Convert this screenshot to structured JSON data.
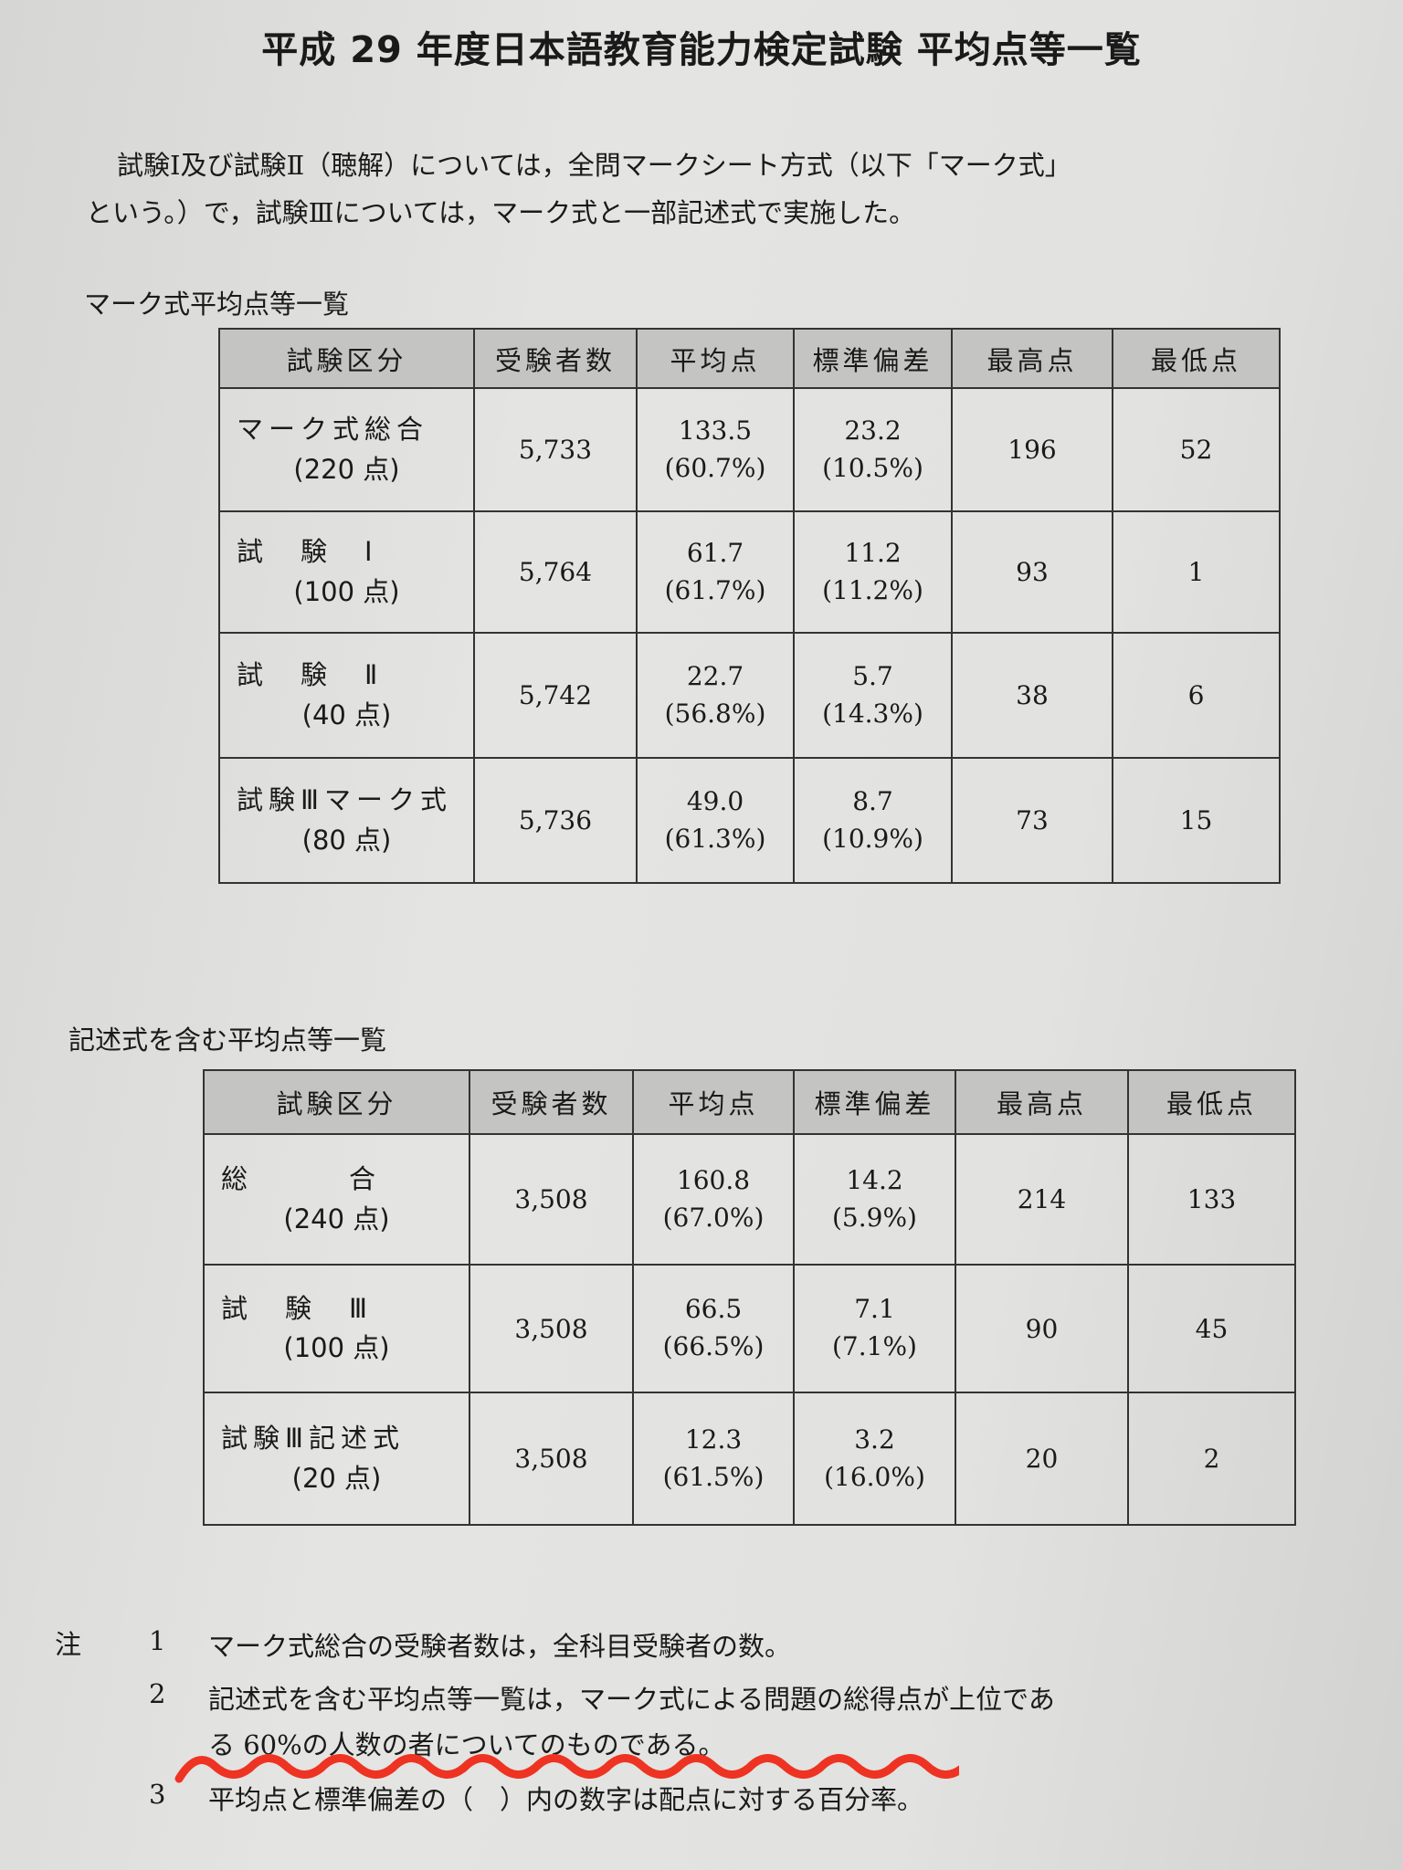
{
  "title": "平成 29 年度日本語教育能力検定試験 平均点等一覧",
  "intro": {
    "line1": "試験Ⅰ及び試験Ⅱ（聴解）については，全問マークシート方式（以下「マーク式」",
    "line2": "という。）で，試験Ⅲについては，マーク式と一部記述式で実施した。"
  },
  "headers": [
    "試験区分",
    "受験者数",
    "平均点",
    "標準偏差",
    "最高点",
    "最低点"
  ],
  "table1": {
    "heading": "マーク式平均点等一覧",
    "rows": [
      {
        "name": "マーク式総合",
        "points": "(220 点)",
        "examinees": "5,733",
        "mean": "133.5",
        "mean_pct": "(60.7%)",
        "sd": "23.2",
        "sd_pct": "(10.5%)",
        "max": "196",
        "min": "52"
      },
      {
        "name": "試　験　Ⅰ",
        "points": "(100 点)",
        "examinees": "5,764",
        "mean": "61.7",
        "mean_pct": "(61.7%)",
        "sd": "11.2",
        "sd_pct": "(11.2%)",
        "max": "93",
        "min": "1"
      },
      {
        "name": "試　験　Ⅱ",
        "points": "(40 点)",
        "examinees": "5,742",
        "mean": "22.7",
        "mean_pct": "(56.8%)",
        "sd": "5.7",
        "sd_pct": "(14.3%)",
        "max": "38",
        "min": "6"
      },
      {
        "name": "試験Ⅲマーク式",
        "points": "(80 点)",
        "examinees": "5,736",
        "mean": "49.0",
        "mean_pct": "(61.3%)",
        "sd": "8.7",
        "sd_pct": "(10.9%)",
        "max": "73",
        "min": "15"
      }
    ]
  },
  "table2": {
    "heading": "記述式を含む平均点等一覧",
    "rows": [
      {
        "name": "総　　　合",
        "points": "(240 点)",
        "examinees": "3,508",
        "mean": "160.8",
        "mean_pct": "(67.0%)",
        "sd": "14.2",
        "sd_pct": "(5.9%)",
        "max": "214",
        "min": "133"
      },
      {
        "name": "試　験　Ⅲ",
        "points": "(100 点)",
        "examinees": "3,508",
        "mean": "66.5",
        "mean_pct": "(66.5%)",
        "sd": "7.1",
        "sd_pct": "(7.1%)",
        "max": "90",
        "min": "45"
      },
      {
        "name": "試験Ⅲ記述式",
        "points": "(20 点)",
        "examinees": "3,508",
        "mean": "12.3",
        "mean_pct": "(61.5%)",
        "sd": "3.2",
        "sd_pct": "(16.0%)",
        "max": "20",
        "min": "2"
      }
    ]
  },
  "notes": {
    "label": "注",
    "items": [
      {
        "num": "1",
        "text": "マーク式総合の受験者数は，全科目受験者の数。"
      },
      {
        "num": "2",
        "text": "記述式を含む平均点等一覧は，マーク式による問題の総得点が上位であ",
        "text2": "る 60%の人数の者についてのものである。"
      },
      {
        "num": "3",
        "text": "平均点と標準偏差の（　）内の数字は配点に対する百分率。"
      }
    ]
  },
  "colors": {
    "paper": "#e2e2e0",
    "header_fill": "#c4c4c2",
    "annotation": "#ee3322"
  }
}
